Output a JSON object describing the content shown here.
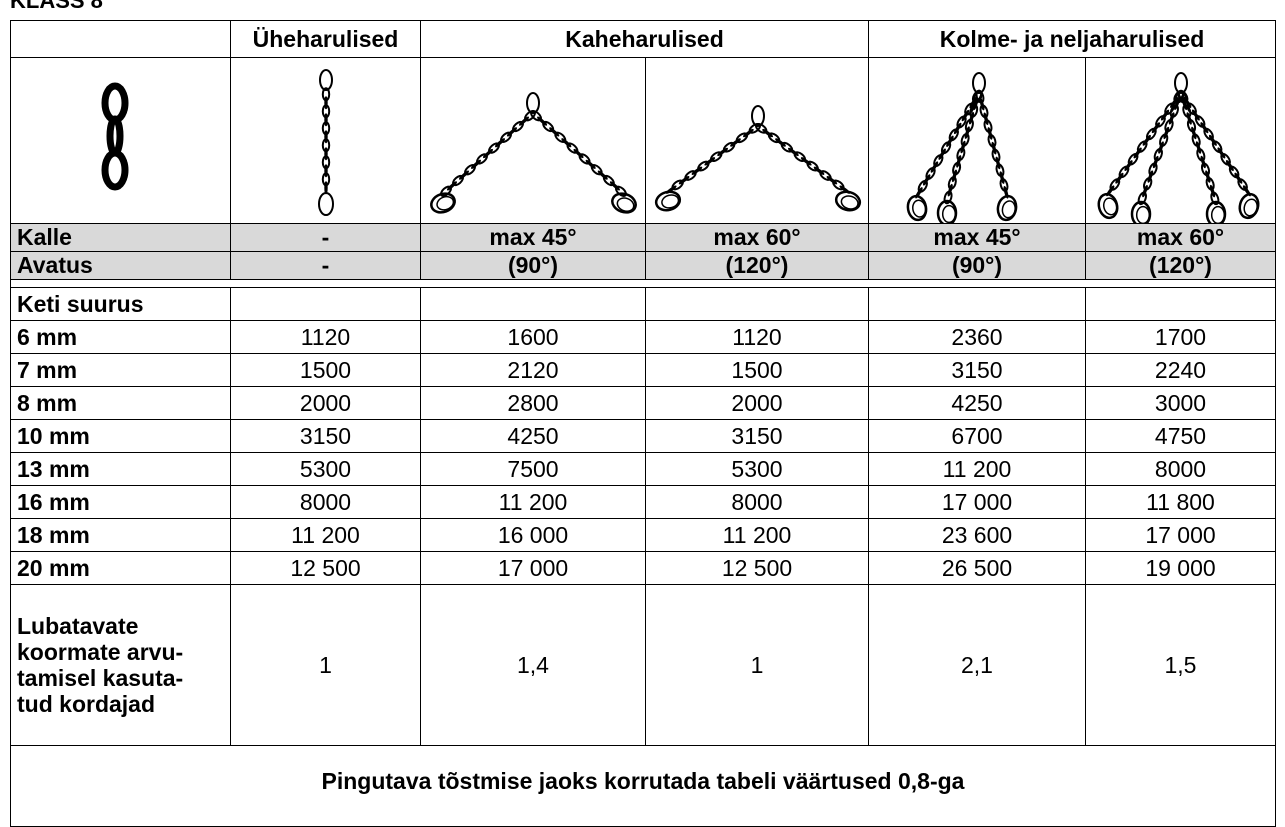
{
  "title": "KLASS 8",
  "header": [
    "Üheharulised",
    "Kaheharulised",
    "Kolme- ja neljaharulised"
  ],
  "angle_rows": [
    {
      "label": "Kalle",
      "cells": [
        "-",
        "max 45°",
        "max 60°",
        "max 45°",
        "max 60°"
      ]
    },
    {
      "label": "Avatus",
      "cells": [
        "-",
        "(90°)",
        "(120°)",
        "(90°)",
        "(120°)"
      ]
    }
  ],
  "size_header": "Keti suurus",
  "rows": [
    {
      "label": "6 mm",
      "cells": [
        "1120",
        "1600",
        "1120",
        "2360",
        "1700"
      ]
    },
    {
      "label": "7 mm",
      "cells": [
        "1500",
        "2120",
        "1500",
        "3150",
        "2240"
      ]
    },
    {
      "label": "8 mm",
      "cells": [
        "2000",
        "2800",
        "2000",
        "4250",
        "3000"
      ]
    },
    {
      "label": "10 mm",
      "cells": [
        "3150",
        "4250",
        "3150",
        "6700",
        "4750"
      ]
    },
    {
      "label": "13 mm",
      "cells": [
        "5300",
        "7500",
        "5300",
        "11 200",
        "8000"
      ]
    },
    {
      "label": "16 mm",
      "cells": [
        "8000",
        "11 200",
        "8000",
        "17 000",
        "11 800"
      ]
    },
    {
      "label": "18 mm",
      "cells": [
        "11 200",
        "16 000",
        "11 200",
        "23 600",
        "17 000"
      ]
    },
    {
      "label": "20 mm",
      "cells": [
        "12 500",
        "17 000",
        "12 500",
        "26 500",
        "19 000"
      ]
    }
  ],
  "multiplier": {
    "label_lines": [
      "Lubatavate",
      "koormate arvu-",
      "tamisel kasuta-",
      "tud kordajad"
    ],
    "cells": [
      "1",
      "1,4",
      "1",
      "2,1",
      "1,5"
    ]
  },
  "note": "Pingutava tõstmise jaoks korrutada tabeli väärtused 0,8-ga"
}
